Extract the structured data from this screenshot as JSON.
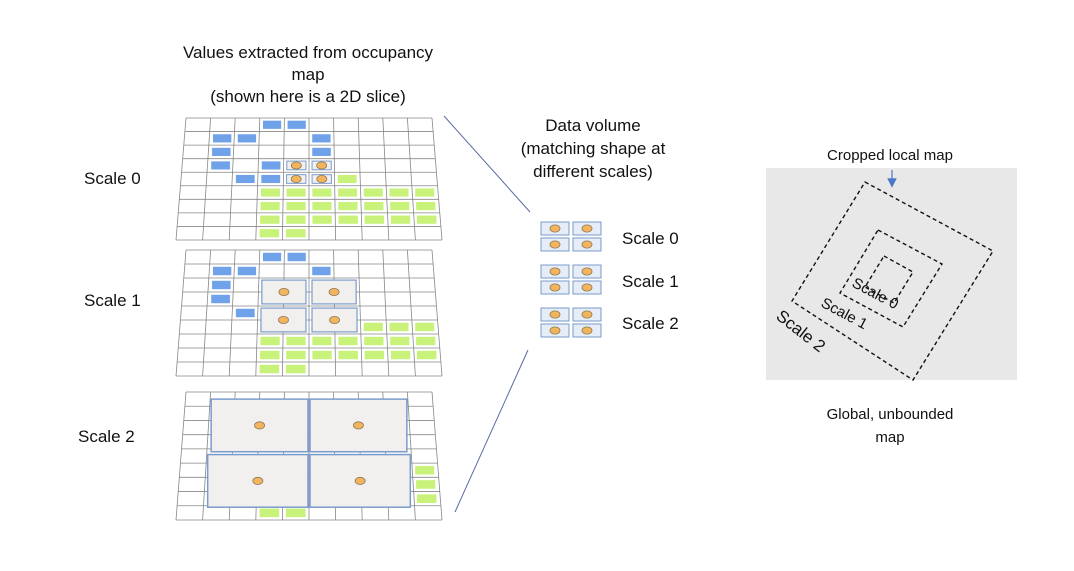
{
  "title_lines": [
    "Values extracted from occupancy",
    "map",
    "(shown here is a 2D slice)"
  ],
  "grid_scale_labels": [
    "Scale 0",
    "Scale 1",
    "Scale 2"
  ],
  "data_volume_lines": [
    "Data volume",
    "(matching shape at",
    "different scales)"
  ],
  "volume_scale_labels": [
    "Scale 0",
    "Scale 1",
    "Scale 2"
  ],
  "global_map": {
    "cropped_label": "Cropped local map",
    "nested_labels": [
      "Scale 0",
      "Scale 1",
      "Scale 2"
    ],
    "caption_lines": [
      "Global, unbounded",
      "map"
    ]
  },
  "colors": {
    "occupied_blue": "#6fa2e8",
    "free_green": "#c8f27a",
    "marker_orange": "#f3b45e",
    "cell_border": "#7a9ccc",
    "map_gray": "#e8e8e8",
    "grid_line": "#888888"
  }
}
